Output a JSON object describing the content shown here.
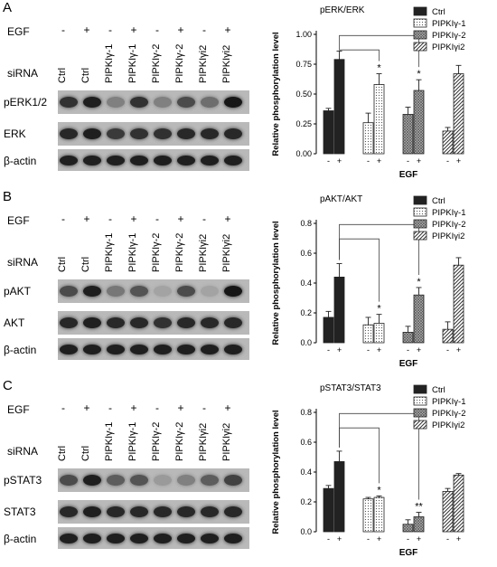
{
  "lanes": [
    "Ctrl",
    "Ctrl",
    "PIPKIγ‑1",
    "PIPKIγ‑1",
    "PIPKIγ‑2",
    "PIPKIγ‑2",
    "PIPKIγi2",
    "PIPKIγi2"
  ],
  "egf_signs": [
    "-",
    "+",
    "-",
    "+",
    "-",
    "+",
    "-",
    "+"
  ],
  "egf_label": "EGF",
  "sirna_label": "siRNA",
  "panels": [
    {
      "letter": "A",
      "blot_rows": [
        {
          "label": "pERK1/2",
          "bands": [
            0.75,
            0.85,
            0.3,
            0.75,
            0.3,
            0.6,
            0.4,
            0.9
          ]
        },
        {
          "label": "ERK",
          "bands": [
            0.8,
            0.85,
            0.7,
            0.75,
            0.75,
            0.8,
            0.8,
            0.8
          ]
        },
        {
          "label": "β-actin",
          "bands": [
            0.85,
            0.85,
            0.85,
            0.85,
            0.85,
            0.85,
            0.85,
            0.85
          ]
        }
      ],
      "chart_data": {
        "type": "bar",
        "title": "pERK/ERK",
        "ylabel": "Relative phosphorylation level",
        "xlabel": "EGF",
        "ylim": [
          0,
          1.0
        ],
        "yticks": [
          "0.00",
          "0.25",
          "0.50",
          "0.75",
          "1.00"
        ],
        "series": [
          {
            "name": "Ctrl",
            "values": [
              0.36,
              0.79
            ],
            "errors": [
              0.02,
              0.07
            ],
            "fill": "solid"
          },
          {
            "name": "PIPKIγ-1",
            "values": [
              0.26,
              0.58
            ],
            "errors": [
              0.08,
              0.09
            ],
            "fill": "dots"
          },
          {
            "name": "PIPKIγ-2",
            "values": [
              0.33,
              0.53
            ],
            "errors": [
              0.06,
              0.09
            ],
            "fill": "grid"
          },
          {
            "name": "PIPKIγi2",
            "values": [
              0.19,
              0.67
            ],
            "errors": [
              0.03,
              0.07
            ],
            "fill": "hatch"
          }
        ],
        "stars": [
          "*",
          "*",
          ""
        ],
        "x_signs": [
          "-",
          "+"
        ]
      }
    },
    {
      "letter": "B",
      "blot_rows": [
        {
          "label": "pAKT",
          "bands": [
            0.6,
            0.85,
            0.35,
            0.55,
            0.1,
            0.6,
            0.1,
            0.9
          ]
        },
        {
          "label": "AKT",
          "bands": [
            0.8,
            0.85,
            0.8,
            0.8,
            0.75,
            0.8,
            0.8,
            0.8
          ]
        },
        {
          "label": "β-actin",
          "bands": [
            0.85,
            0.85,
            0.85,
            0.85,
            0.85,
            0.85,
            0.85,
            0.85
          ]
        }
      ],
      "chart_data": {
        "type": "bar",
        "title": "pAKT/AKT",
        "ylabel": "Relative phosphorylation level",
        "xlabel": "EGF",
        "ylim": [
          0,
          0.8
        ],
        "yticks": [
          "0.0",
          "0.2",
          "0.4",
          "0.6",
          "0.8"
        ],
        "series": [
          {
            "name": "Ctrl",
            "values": [
              0.17,
              0.44
            ],
            "errors": [
              0.04,
              0.09
            ],
            "fill": "solid"
          },
          {
            "name": "PIPKIγ-1",
            "values": [
              0.12,
              0.13
            ],
            "errors": [
              0.05,
              0.06
            ],
            "fill": "dots"
          },
          {
            "name": "PIPKIγ-2",
            "values": [
              0.07,
              0.32
            ],
            "errors": [
              0.04,
              0.05
            ],
            "fill": "grid"
          },
          {
            "name": "PIPKIγi2",
            "values": [
              0.09,
              0.52
            ],
            "errors": [
              0.05,
              0.05
            ],
            "fill": "hatch"
          }
        ],
        "stars": [
          "*",
          "*",
          ""
        ],
        "x_signs": [
          "-",
          "+"
        ]
      }
    },
    {
      "letter": "C",
      "blot_rows": [
        {
          "label": "pSTAT3",
          "bands": [
            0.6,
            0.85,
            0.5,
            0.55,
            0.15,
            0.3,
            0.5,
            0.65
          ]
        },
        {
          "label": "STAT3",
          "bands": [
            0.8,
            0.85,
            0.8,
            0.8,
            0.8,
            0.8,
            0.8,
            0.8
          ]
        },
        {
          "label": "β-actin",
          "bands": [
            0.85,
            0.85,
            0.85,
            0.85,
            0.85,
            0.85,
            0.85,
            0.85
          ]
        }
      ],
      "chart_data": {
        "type": "bar",
        "title": "pSTAT3/STAT3",
        "ylabel": "Relative phosphorylation level",
        "xlabel": "EGF",
        "ylim": [
          0,
          0.8
        ],
        "yticks": [
          "0.0",
          "0.2",
          "0.4",
          "0.6",
          "0.8"
        ],
        "series": [
          {
            "name": "Ctrl",
            "values": [
              0.29,
              0.47
            ],
            "errors": [
              0.02,
              0.07
            ],
            "fill": "solid"
          },
          {
            "name": "PIPKIγ-1",
            "values": [
              0.22,
              0.23
            ],
            "errors": [
              0.01,
              0.01
            ],
            "fill": "dots"
          },
          {
            "name": "PIPKIγ-2",
            "values": [
              0.05,
              0.1
            ],
            "errors": [
              0.03,
              0.03
            ],
            "fill": "grid"
          },
          {
            "name": "PIPKIγi2",
            "values": [
              0.27,
              0.38
            ],
            "errors": [
              0.02,
              0.01
            ],
            "fill": "hatch"
          }
        ],
        "stars": [
          "*",
          "**",
          ""
        ],
        "x_signs": [
          "-",
          "+"
        ]
      }
    }
  ]
}
